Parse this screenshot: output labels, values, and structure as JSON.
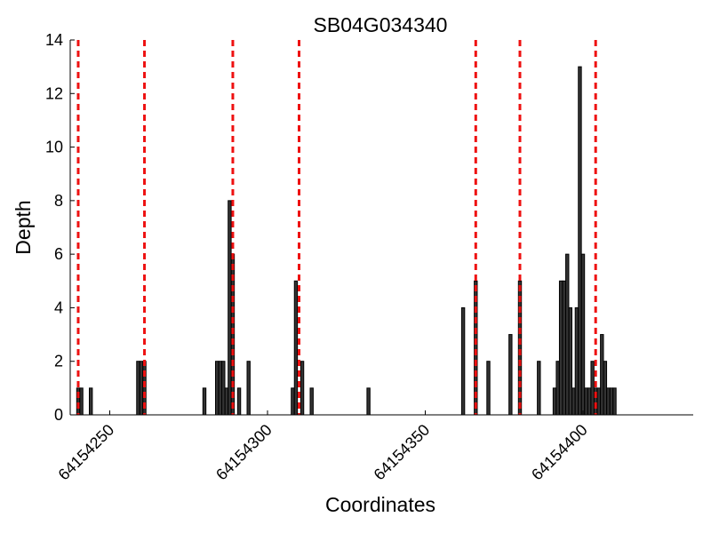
{
  "chart_data": {
    "type": "bar",
    "title": "SB04G034340",
    "xlabel": "Coordinates",
    "ylabel": "Depth",
    "xlim": [
      64154240,
      64154420
    ],
    "ylim": [
      0,
      14
    ],
    "yticks": [
      0,
      2,
      4,
      6,
      8,
      10,
      12,
      14
    ],
    "xticks": [
      64154250,
      64154300,
      64154350,
      64154400
    ],
    "grid": false,
    "bar_color": "#333333",
    "marker_color": "#ee1111",
    "x": [
      64154240,
      64154241,
      64154244,
      64154259,
      64154260,
      64154261,
      64154280,
      64154284,
      64154285,
      64154286,
      64154287,
      64154288,
      64154289,
      64154291,
      64154294,
      64154308,
      64154309,
      64154311,
      64154314,
      64154332,
      64154362,
      64154366,
      64154370,
      64154377,
      64154380,
      64154386,
      64154391,
      64154392,
      64154393,
      64154394,
      64154395,
      64154396,
      64154397,
      64154398,
      64154399,
      64154400,
      64154401,
      64154402,
      64154403,
      64154404,
      64154405,
      64154406,
      64154407,
      64154408,
      64154409,
      64154410
    ],
    "values": [
      1,
      1,
      1,
      2,
      2,
      2,
      1,
      2,
      2,
      2,
      1,
      8,
      6,
      1,
      2,
      1,
      5,
      2,
      1,
      1,
      4,
      5,
      2,
      3,
      5,
      2,
      1,
      2,
      5,
      5,
      6,
      4,
      1,
      4,
      13,
      6,
      1,
      1,
      2,
      1,
      1,
      3,
      2,
      1,
      1,
      1
    ],
    "markers": [
      64154240,
      64154261,
      64154289,
      64154310,
      64154366,
      64154380,
      64154404
    ]
  }
}
